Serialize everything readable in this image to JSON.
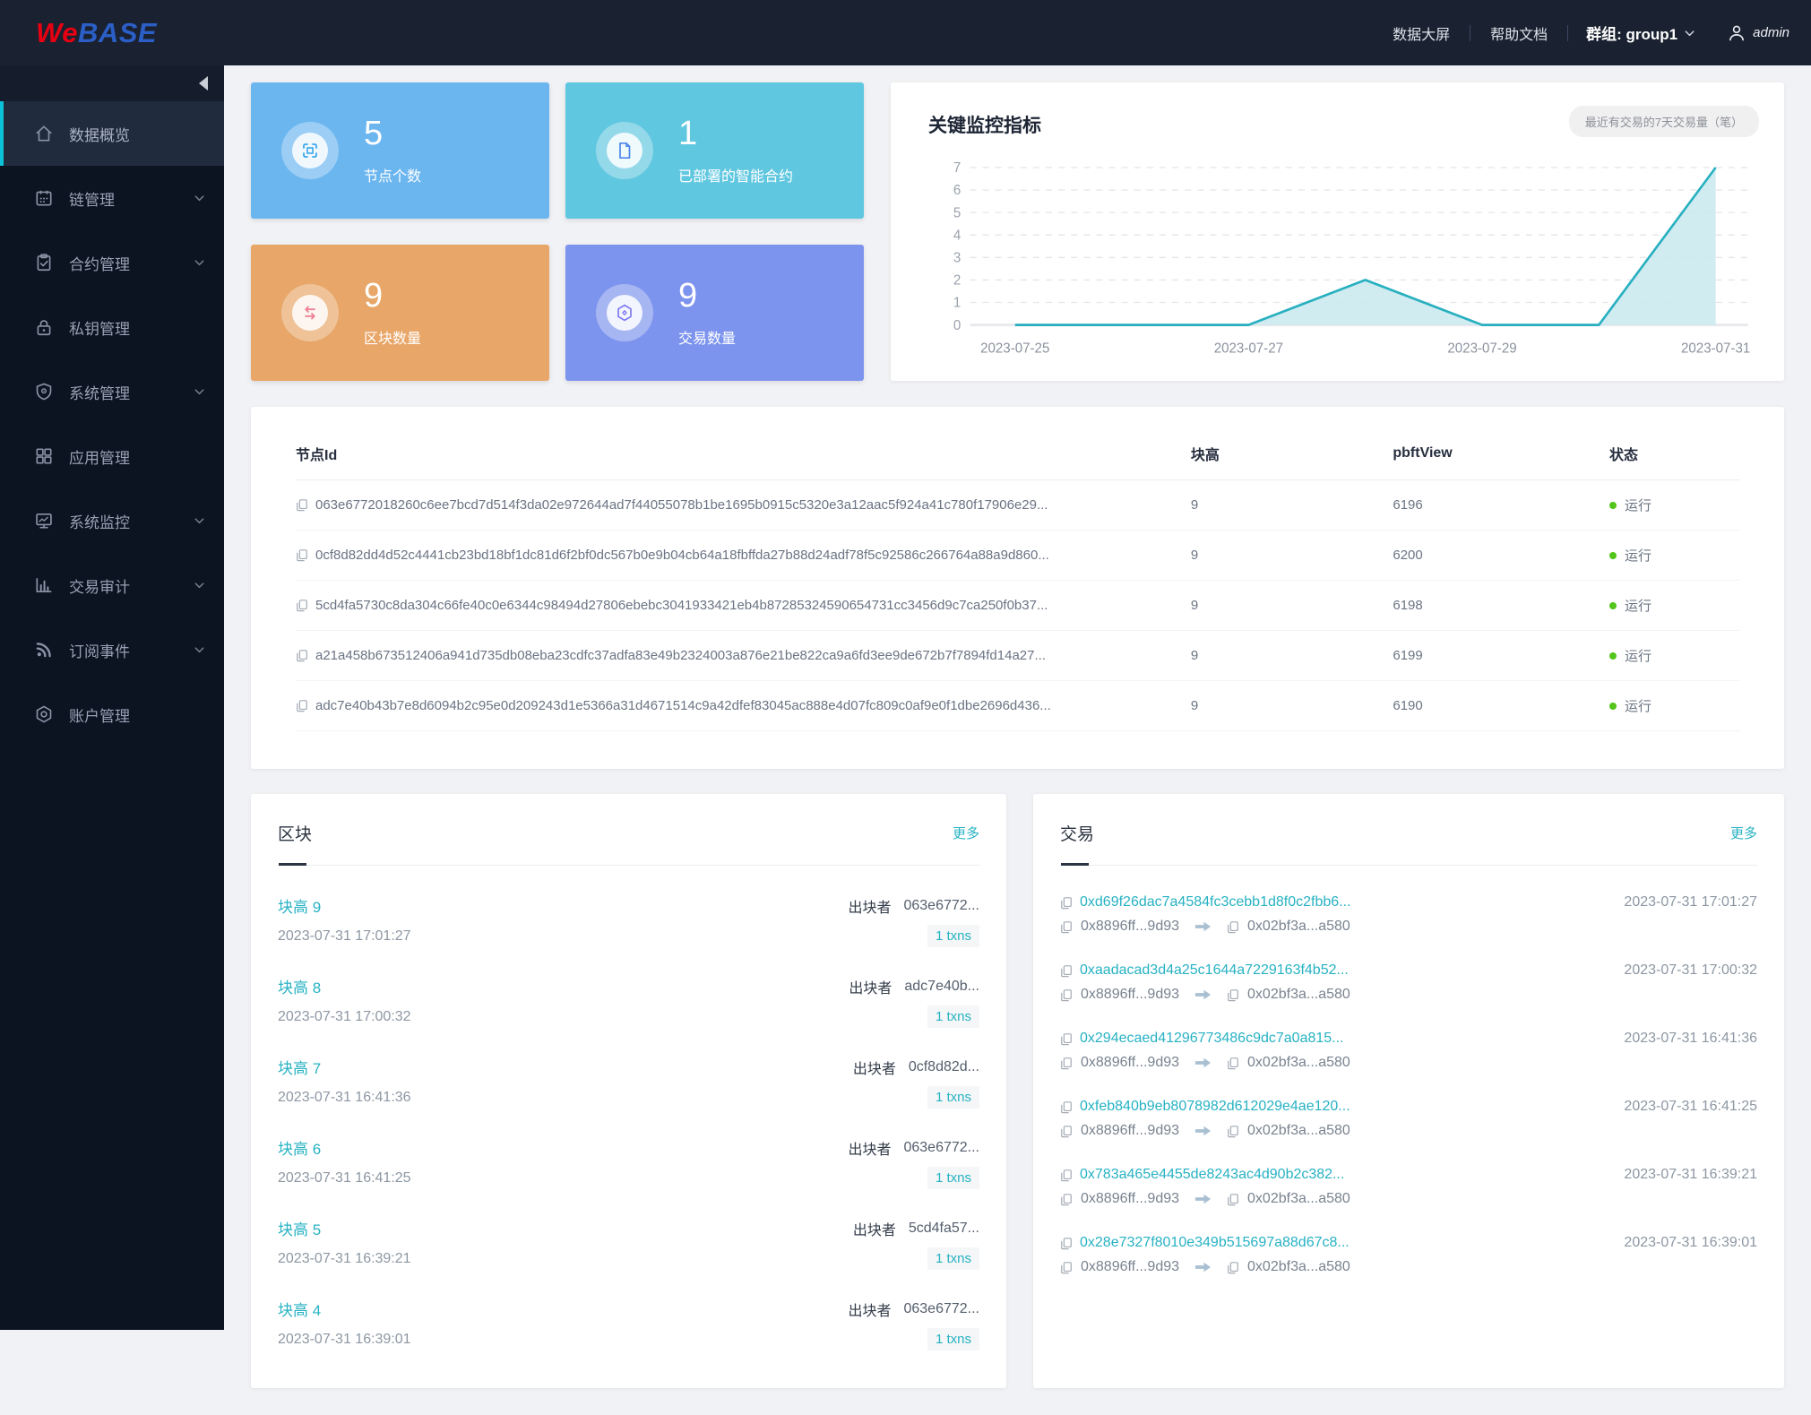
{
  "navbar": {
    "logo_we": "We",
    "logo_base": "BASE",
    "links": [
      {
        "label": "数据大屏"
      },
      {
        "label": "帮助文档"
      }
    ],
    "group_label": "群组: group1",
    "group_icon": "chevron-down-icon",
    "user": "admin",
    "user_icon": "person-icon"
  },
  "sidebar": {
    "collapse_icon": "collapse-left-icon",
    "items": [
      {
        "label": "数据概览",
        "icon": "home-icon",
        "active": true,
        "expandable": false
      },
      {
        "label": "链管理",
        "icon": "calendar-icon",
        "active": false,
        "expandable": true
      },
      {
        "label": "合约管理",
        "icon": "clipboard-check-icon",
        "active": false,
        "expandable": true
      },
      {
        "label": "私钥管理",
        "icon": "lock-icon",
        "active": false,
        "expandable": false
      },
      {
        "label": "系统管理",
        "icon": "shield-icon",
        "active": false,
        "expandable": true
      },
      {
        "label": "应用管理",
        "icon": "grid-icon",
        "active": false,
        "expandable": false
      },
      {
        "label": "系统监控",
        "icon": "monitor-icon",
        "active": false,
        "expandable": true
      },
      {
        "label": "交易审计",
        "icon": "bar-chart-icon",
        "active": false,
        "expandable": true
      },
      {
        "label": "订阅事件",
        "icon": "rss-icon",
        "active": false,
        "expandable": true
      },
      {
        "label": "账户管理",
        "icon": "gear-icon",
        "active": false,
        "expandable": false
      }
    ]
  },
  "stats": [
    {
      "value": "5",
      "label": "节点个数",
      "color": "#6cb6f0",
      "icon": "node-frame-icon"
    },
    {
      "value": "1",
      "label": "已部署的智能合约",
      "color": "#60c7e0",
      "icon": "contract-doc-icon"
    },
    {
      "value": "9",
      "label": "区块数量",
      "color": "#e8a668",
      "icon": "swap-arrows-icon"
    },
    {
      "value": "9",
      "label": "交易数量",
      "color": "#7d94ee",
      "icon": "hexagon-icon"
    }
  ],
  "chart_data": {
    "type": "area",
    "title": "关键监控指标",
    "legend_label": "最近有交易的7天交易量（笔）",
    "legend_position": "top-right",
    "x": [
      "2023-07-25",
      "2023-07-26",
      "2023-07-27",
      "2023-07-28",
      "2023-07-29",
      "2023-07-30",
      "2023-07-31"
    ],
    "values": [
      0,
      0,
      0,
      2,
      0,
      0,
      7
    ],
    "x_tick_labels": [
      "2023-07-25",
      "2023-07-27",
      "2023-07-29",
      "2023-07-31"
    ],
    "xlabel": "",
    "ylabel": "",
    "ylim": [
      0,
      7
    ],
    "yticks": [
      0,
      1,
      2,
      3,
      4,
      5,
      6,
      7
    ],
    "grid": "dashed-horizontal",
    "line_color": "#28b0c0",
    "fill_color": "#c9e9ee"
  },
  "node_table": {
    "headers": [
      "节点Id",
      "块高",
      "pbftView",
      "状态"
    ],
    "rows": [
      {
        "node_id": "063e6772018260c6ee7bcd7d514f3da02e972644ad7f44055078b1be1695b0915c5320e3a12aac5f924a41c780f17906e29...",
        "block_height": "9",
        "pbft_view": "6196",
        "status": "运行"
      },
      {
        "node_id": "0cf8d82dd4d52c4441cb23bd18bf1dc81d6f2bf0dc567b0e9b04cb64a18fbffda27b88d24adf78f5c92586c266764a88a9d860...",
        "block_height": "9",
        "pbft_view": "6200",
        "status": "运行"
      },
      {
        "node_id": "5cd4fa5730c8da304c66fe40c0e6344c98494d27806ebebc3041933421eb4b87285324590654731cc3456d9c7ca250f0b37...",
        "block_height": "9",
        "pbft_view": "6198",
        "status": "运行"
      },
      {
        "node_id": "a21a458b673512406a941d735db08eba23cdfc37adfa83e49b2324003a876e21be822ca9a6fd3ee9de672b7f7894fd14a27...",
        "block_height": "9",
        "pbft_view": "6199",
        "status": "运行"
      },
      {
        "node_id": "adc7e40b43b7e8d6094b2c95e0d209243d1e5366a31d4671514c9a42dfef83045ac888e4d07fc809c0af9e0f1dbe2696d436...",
        "block_height": "9",
        "pbft_view": "6190",
        "status": "运行"
      }
    ],
    "status_color": "#52c41a"
  },
  "blocks_panel": {
    "title": "区块",
    "more": "更多",
    "producer_label": "出块者",
    "items": [
      {
        "height_label": "块高 9",
        "time": "2023-07-31 17:01:27",
        "producer": "063e6772...",
        "txns": "1 txns"
      },
      {
        "height_label": "块高 8",
        "time": "2023-07-31 17:00:32",
        "producer": "adc7e40b...",
        "txns": "1 txns"
      },
      {
        "height_label": "块高 7",
        "time": "2023-07-31 16:41:36",
        "producer": "0cf8d82d...",
        "txns": "1 txns"
      },
      {
        "height_label": "块高 6",
        "time": "2023-07-31 16:41:25",
        "producer": "063e6772...",
        "txns": "1 txns"
      },
      {
        "height_label": "块高 5",
        "time": "2023-07-31 16:39:21",
        "producer": "5cd4fa57...",
        "txns": "1 txns"
      },
      {
        "height_label": "块高 4",
        "time": "2023-07-31 16:39:01",
        "producer": "063e6772...",
        "txns": "1 txns"
      }
    ]
  },
  "tx_panel": {
    "title": "交易",
    "more": "更多",
    "items": [
      {
        "hash": "0xd69f26dac7a4584fc3cebb1d8f0c2fbb6...",
        "time": "2023-07-31 17:01:27",
        "from": "0x8896ff...9d93",
        "to": "0x02bf3a...a580"
      },
      {
        "hash": "0xaadacad3d4a25c1644a7229163f4b52...",
        "time": "2023-07-31 17:00:32",
        "from": "0x8896ff...9d93",
        "to": "0x02bf3a...a580"
      },
      {
        "hash": "0x294ecaed41296773486c9dc7a0a815...",
        "time": "2023-07-31 16:41:36",
        "from": "0x8896ff...9d93",
        "to": "0x02bf3a...a580"
      },
      {
        "hash": "0xfeb840b9eb8078982d612029e4ae120...",
        "time": "2023-07-31 16:41:25",
        "from": "0x8896ff...9d93",
        "to": "0x02bf3a...a580"
      },
      {
        "hash": "0x783a465e4455de8243ac4d90b2c382...",
        "time": "2023-07-31 16:39:21",
        "from": "0x8896ff...9d93",
        "to": "0x02bf3a...a580"
      },
      {
        "hash": "0x28e7327f8010e349b515697a88d67c8...",
        "time": "2023-07-31 16:39:01",
        "from": "0x8896ff...9d93",
        "to": "0x02bf3a...a580"
      }
    ]
  },
  "colors": {
    "accent_teal": "#27b2c3",
    "sidebar_active_bar": "#0cc2d8",
    "navbar_bg": "#1a2130",
    "sidebar_bg": "#0c1321",
    "status_green": "#52c41a"
  }
}
